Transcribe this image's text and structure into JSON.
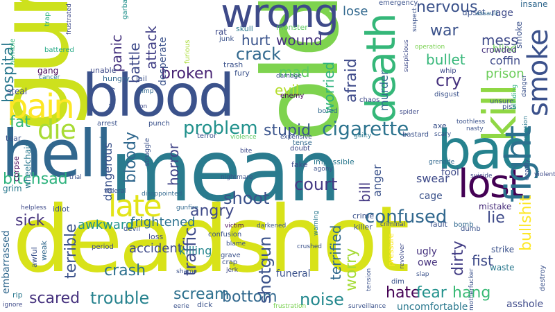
{
  "words": [
    {
      "text": "mean",
      "color": "#2a7b8e"
    },
    {
      "text": "old",
      "color": "#7ed34f"
    },
    {
      "text": "deadshot",
      "color": "#d8e219"
    },
    {
      "text": "gun",
      "color": "#cde11d"
    },
    {
      "text": "hell",
      "color": "#31678e"
    },
    {
      "text": "blood",
      "color": "#3b528b"
    },
    {
      "text": "bad",
      "color": "#26828e"
    },
    {
      "text": "wrong",
      "color": "#3e4a89"
    },
    {
      "text": "death",
      "color": "#35b779"
    },
    {
      "text": "kill",
      "color": "#8fd744"
    },
    {
      "text": "lost",
      "color": "#440154"
    },
    {
      "text": "fight",
      "color": "#2c718e"
    },
    {
      "text": "pain",
      "color": "#fde725"
    },
    {
      "text": "smoke",
      "color": "#3b518b"
    },
    {
      "text": "late",
      "color": "#e2e418"
    },
    {
      "text": "die",
      "color": "#a8db34"
    },
    {
      "text": "cigarette",
      "color": "#2c738e"
    },
    {
      "text": "problem",
      "color": "#21918c"
    },
    {
      "text": "stupid",
      "color": "#3a548c"
    },
    {
      "text": "hurt",
      "color": "#3a548c"
    },
    {
      "text": "crack",
      "color": "#31688e"
    },
    {
      "text": "wound",
      "color": "#46337e"
    },
    {
      "text": "broken",
      "color": "#482475"
    },
    {
      "text": "bitchsad",
      "color": "#2db27d"
    },
    {
      "text": "confused",
      "color": "#31688e"
    },
    {
      "text": "shoot",
      "color": "#3b528b"
    },
    {
      "text": "angry",
      "color": "#3e4989"
    },
    {
      "text": "court",
      "color": "#443983"
    },
    {
      "text": "sick",
      "color": "#46337e"
    },
    {
      "text": "scream",
      "color": "#2d708e"
    },
    {
      "text": "scared",
      "color": "#46327e"
    },
    {
      "text": "trouble",
      "color": "#26828e"
    },
    {
      "text": "bottom",
      "color": "#31688e"
    },
    {
      "text": "noise",
      "color": "#23888e"
    },
    {
      "text": "hate",
      "color": "#440154"
    },
    {
      "text": "fear",
      "color": "#21918c"
    },
    {
      "text": "hang",
      "color": "#3aba76"
    },
    {
      "text": "worry",
      "color": "#a5db36"
    },
    {
      "text": "terrified",
      "color": "#30698e"
    },
    {
      "text": "shotgun",
      "color": "#3b528b"
    },
    {
      "text": "traffic",
      "color": "#3e4a89"
    },
    {
      "text": "crash",
      "color": "#2d708e"
    },
    {
      "text": "terrible",
      "color": "#3b528b"
    },
    {
      "text": "awkward",
      "color": "#20928c"
    },
    {
      "text": "frightened",
      "color": "#2c718e"
    },
    {
      "text": "accident",
      "color": "#3e4a89"
    },
    {
      "text": "horror",
      "color": "#414487"
    },
    {
      "text": "bloody",
      "color": "#31688e"
    },
    {
      "text": "dangerous",
      "color": "#3b528b"
    },
    {
      "text": "attack",
      "color": "#424086"
    },
    {
      "text": "battle",
      "color": "#3e4a89"
    },
    {
      "text": "panic",
      "color": "#46337e"
    },
    {
      "text": "fat",
      "color": "#35b779"
    },
    {
      "text": "hospital",
      "color": "#2a788e"
    },
    {
      "text": "afraid",
      "color": "#3e4a89"
    },
    {
      "text": "worried",
      "color": "#2db27d"
    },
    {
      "text": "mad",
      "color": "#5ec962"
    },
    {
      "text": "evil",
      "color": "#b5de2b"
    },
    {
      "text": "war",
      "color": "#3b528b"
    },
    {
      "text": "nervous",
      "color": "#3b528b"
    },
    {
      "text": "lose",
      "color": "#31688e"
    },
    {
      "text": "mess",
      "color": "#3e4a89"
    },
    {
      "text": "bullet",
      "color": "#35b779"
    },
    {
      "text": "cry",
      "color": "#46327e"
    },
    {
      "text": "prison",
      "color": "#6ccd5a"
    },
    {
      "text": "coffin",
      "color": "#3e4a89"
    },
    {
      "text": "murder",
      "color": "#31688e"
    },
    {
      "text": "anger",
      "color": "#3b528b"
    },
    {
      "text": "bill",
      "color": "#443983"
    },
    {
      "text": "fist",
      "color": "#3e4a89"
    },
    {
      "text": "dirty",
      "color": "#433e85"
    },
    {
      "text": "lie",
      "color": "#3e4a89"
    },
    {
      "text": "bullshit",
      "color": "#fde725"
    },
    {
      "text": "mistake",
      "color": "#472d7b"
    },
    {
      "text": "swear",
      "color": "#3e4a89"
    },
    {
      "text": "cage",
      "color": "#3b528b"
    },
    {
      "text": "fool",
      "color": "#3e4a89"
    },
    {
      "text": "killing",
      "color": "#24868e"
    },
    {
      "text": "uncomfortable",
      "color": "#2a788e"
    },
    {
      "text": "asshole",
      "color": "#3e4a89"
    },
    {
      "text": "funeral",
      "color": "#3b528b"
    },
    {
      "text": "ugly",
      "color": "#46337e"
    },
    {
      "text": "owe",
      "color": "#46327e"
    },
    {
      "text": "strike",
      "color": "#3b528b"
    },
    {
      "text": "waste",
      "color": "#2a788e"
    },
    {
      "text": "blind",
      "color": "#6ccd5a"
    },
    {
      "text": "crowded",
      "color": "#46337e"
    },
    {
      "text": "rage",
      "color": "#3e4a89"
    },
    {
      "text": "upset",
      "color": "#3b528b"
    },
    {
      "text": "insane",
      "color": "#31688e"
    },
    {
      "text": "smoke",
      "color": "#3b518b"
    },
    {
      "text": "embarrassed",
      "color": "#31688e"
    },
    {
      "text": "horrible",
      "color": "#35b779"
    },
    {
      "text": "steal",
      "color": "#3e4a89"
    },
    {
      "text": "gang",
      "color": "#440154"
    },
    {
      "text": "cancer",
      "color": "#2a788e"
    },
    {
      "text": "battered",
      "color": "#22a884"
    },
    {
      "text": "trap",
      "color": "#29af7f"
    },
    {
      "text": "frustrated",
      "color": "#3e4a89"
    },
    {
      "text": "garbage",
      "color": "#21918c"
    },
    {
      "text": "skull",
      "color": "#2a788e"
    },
    {
      "text": "junk",
      "color": "#3b528b"
    },
    {
      "text": "rat",
      "color": "#3e4a89"
    },
    {
      "text": "trash",
      "color": "#3b528b"
    },
    {
      "text": "fury",
      "color": "#3b528b"
    },
    {
      "text": "jail",
      "color": "#3b528b"
    },
    {
      "text": "hungry",
      "color": "#31688e"
    },
    {
      "text": "unable",
      "color": "#3e4a89"
    },
    {
      "text": "monster",
      "color": "#5ec962"
    },
    {
      "text": "damage",
      "color": "#3b528b"
    },
    {
      "text": "emergency",
      "color": "#3b528b"
    },
    {
      "text": "operation",
      "color": "#7ad151"
    },
    {
      "text": "suspicious",
      "color": "#3e4a89"
    },
    {
      "text": "suspect",
      "color": "#3b528b"
    },
    {
      "text": "assault",
      "color": "#31688e"
    },
    {
      "text": "whip",
      "color": "#3e4a89"
    },
    {
      "text": "disgust",
      "color": "#3b528b"
    },
    {
      "text": "unsure",
      "color": "#3b528b"
    },
    {
      "text": "piss",
      "color": "#3b528b"
    },
    {
      "text": "blinding",
      "color": "#2db27d"
    },
    {
      "text": "danger",
      "color": "#3b528b"
    },
    {
      "text": "chaos",
      "color": "#3e4a89"
    },
    {
      "text": "enemy",
      "color": "#440154"
    },
    {
      "text": "bored",
      "color": "#31688e"
    },
    {
      "text": "spider",
      "color": "#3e4a89"
    },
    {
      "text": "toothless",
      "color": "#3b528b"
    },
    {
      "text": "nasty",
      "color": "#3b528b"
    },
    {
      "text": "explosion",
      "color": "#2a788e"
    },
    {
      "text": "lonely",
      "color": "#3b528b"
    },
    {
      "text": "limp",
      "color": "#31688e"
    },
    {
      "text": "con",
      "color": "#3e4a89"
    },
    {
      "text": "furious",
      "color": "#a8db34"
    },
    {
      "text": "desperate",
      "color": "#3b528b"
    },
    {
      "text": "arrest",
      "color": "#3b528b"
    },
    {
      "text": "punch",
      "color": "#3b528b"
    },
    {
      "text": "struggle",
      "color": "#3b528b"
    },
    {
      "text": "tear",
      "color": "#3b528b"
    },
    {
      "text": "terror",
      "color": "#3b528b"
    },
    {
      "text": "violence",
      "color": "#5ec962"
    },
    {
      "text": "expensive",
      "color": "#3b528b"
    },
    {
      "text": "guilty",
      "color": "#2a788e"
    },
    {
      "text": "scary",
      "color": "#3b528b"
    },
    {
      "text": "tense",
      "color": "#31688e"
    },
    {
      "text": "doubt",
      "color": "#3e4a89"
    },
    {
      "text": "axe",
      "color": "#3b528b"
    },
    {
      "text": "bastard",
      "color": "#3b528b"
    },
    {
      "text": "annoyed",
      "color": "#31688e"
    },
    {
      "text": "nightmare",
      "color": "#3b528b"
    },
    {
      "text": "bite",
      "color": "#3e4a89"
    },
    {
      "text": "impossible",
      "color": "#2a788e"
    },
    {
      "text": "agony",
      "color": "#3b528b"
    },
    {
      "text": "fake",
      "color": "#3e4a89"
    },
    {
      "text": "grenade",
      "color": "#31688e"
    },
    {
      "text": "suicide",
      "color": "#3e4a89"
    },
    {
      "text": "deadly",
      "color": "#3b528b"
    },
    {
      "text": "violent",
      "color": "#3e4a89"
    },
    {
      "text": "corpse",
      "color": "#440154"
    },
    {
      "text": "wheelchair",
      "color": "#2a788e"
    },
    {
      "text": "trial",
      "color": "#3b528b"
    },
    {
      "text": "federal",
      "color": "#3b528b"
    },
    {
      "text": "disappointed",
      "color": "#31688e"
    },
    {
      "text": "grim",
      "color": "#2a788e"
    },
    {
      "text": "helpless",
      "color": "#3e4a89"
    },
    {
      "text": "idiot",
      "color": "#3b528b"
    },
    {
      "text": "gunfire",
      "color": "#31688e"
    },
    {
      "text": "devil",
      "color": "#3b528b"
    },
    {
      "text": "loss",
      "color": "#3e4a89"
    },
    {
      "text": "victim",
      "color": "#440154"
    },
    {
      "text": "confusion",
      "color": "#3b528b"
    },
    {
      "text": "warning",
      "color": "#2a788e"
    },
    {
      "text": "crime",
      "color": "#3b528b"
    },
    {
      "text": "criminal",
      "color": "#3e4a89"
    },
    {
      "text": "fault",
      "color": "#3b528b"
    },
    {
      "text": "bomb",
      "color": "#31688e"
    },
    {
      "text": "killer",
      "color": "#3b528b"
    },
    {
      "text": "dumb",
      "color": "#3b528b"
    },
    {
      "text": "period",
      "color": "#3e4a89"
    },
    {
      "text": "blame",
      "color": "#3b528b"
    },
    {
      "text": "crushed",
      "color": "#3b528b"
    },
    {
      "text": "awful",
      "color": "#3b528b"
    },
    {
      "text": "weak",
      "color": "#31688e"
    },
    {
      "text": "rip",
      "color": "#2a788e"
    },
    {
      "text": "ignore",
      "color": "#3e4a89"
    },
    {
      "text": "eerie",
      "color": "#3b528b"
    },
    {
      "text": "dick",
      "color": "#3b528b"
    },
    {
      "text": "shame",
      "color": "#3b528b"
    },
    {
      "text": "jerk",
      "color": "#3e4a89"
    },
    {
      "text": "grave",
      "color": "#3b528b"
    },
    {
      "text": "crap",
      "color": "#3b528b"
    },
    {
      "text": "darkened",
      "color": "#3b528b"
    },
    {
      "text": "frustration",
      "color": "#7ad151"
    },
    {
      "text": "surveillance",
      "color": "#3b528b"
    },
    {
      "text": "tension",
      "color": "#3b528b"
    },
    {
      "text": "pressure",
      "color": "#fde725"
    },
    {
      "text": "revolver",
      "color": "#3e4a89"
    },
    {
      "text": "slap",
      "color": "#3b528b"
    },
    {
      "text": "dim",
      "color": "#3b528b"
    },
    {
      "text": "motherfucker",
      "color": "#3b528b"
    },
    {
      "text": "destroy",
      "color": "#3b528b"
    }
  ]
}
